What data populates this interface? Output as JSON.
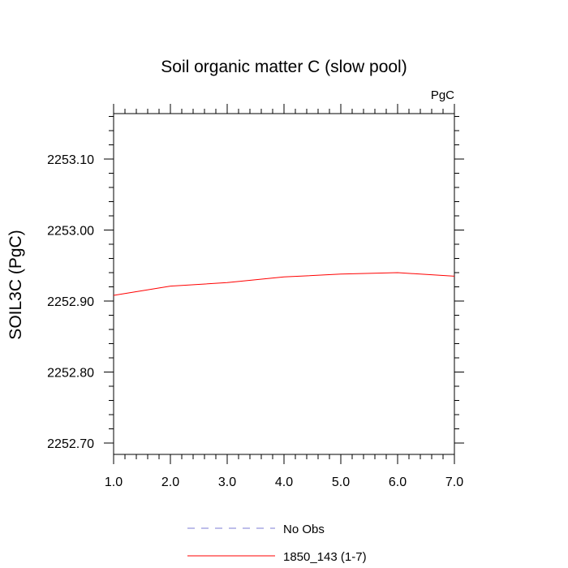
{
  "chart_data": {
    "type": "line",
    "title": "Soil organic matter C (slow pool)",
    "units_label": "PgC",
    "xlabel": "",
    "ylabel": "SOIL3C  (PgC)",
    "xlim": [
      1.0,
      7.0
    ],
    "ylim": [
      2252.684,
      2253.164
    ],
    "x_ticks": [
      "1.0",
      "2.0",
      "3.0",
      "4.0",
      "5.0",
      "6.0",
      "7.0"
    ],
    "x_tick_values": [
      1,
      2,
      3,
      4,
      5,
      6,
      7
    ],
    "y_ticks": [
      "2252.70",
      "2252.80",
      "2252.90",
      "2253.00",
      "2253.10"
    ],
    "y_tick_values": [
      2252.7,
      2252.8,
      2252.9,
      2253.0,
      2253.1
    ],
    "grid": false,
    "legend_position": "bottom",
    "series": [
      {
        "name": "No Obs",
        "color": "#7b7bd6",
        "style": "dashed",
        "x": [],
        "y": []
      },
      {
        "name": "1850_143 (1-7)",
        "color": "#ff0000",
        "style": "solid",
        "x": [
          1,
          2,
          3,
          4,
          5,
          6,
          7
        ],
        "y": [
          2252.908,
          2252.921,
          2252.926,
          2252.934,
          2252.938,
          2252.94,
          2252.935
        ]
      }
    ]
  }
}
